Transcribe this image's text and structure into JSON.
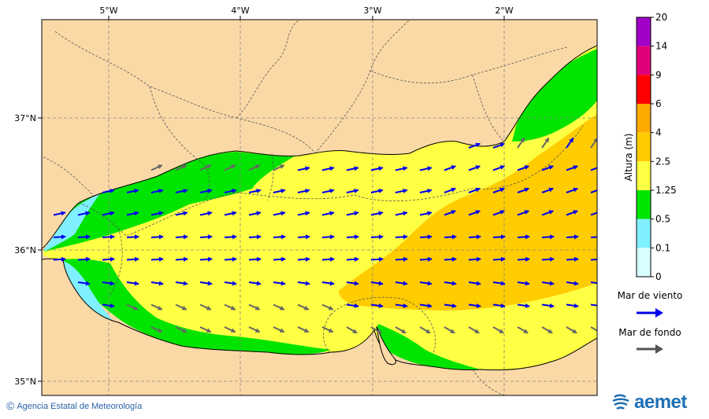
{
  "map": {
    "lon_labels": [
      "5°W",
      "4°W",
      "3°W",
      "2°W"
    ],
    "lat_labels": [
      "37°N",
      "36°N",
      "35°N"
    ]
  },
  "colorbar": {
    "title": "Altura (m)",
    "ticks": [
      "20",
      "14",
      "9",
      "6",
      "4",
      "2.5",
      "1.25",
      "0.5",
      "0.1",
      "0"
    ],
    "colors": [
      "#a000c8",
      "#e0007a",
      "#ff0000",
      "#ffaa00",
      "#ffcc00",
      "#ffff44",
      "#00e400",
      "#7ff0ff",
      "#d8ffff"
    ]
  },
  "legend": {
    "wind_sea_label": "Mar de viento",
    "swell_label": "Mar de fondo",
    "wind_sea_color": "#0000ee",
    "swell_color": "#555555"
  },
  "credit": {
    "copyright_symbol": "©",
    "agency": "Agencia Estatal de Meteorología"
  },
  "logo": {
    "name": "aemet",
    "icon": "aemet-logo-icon"
  }
}
